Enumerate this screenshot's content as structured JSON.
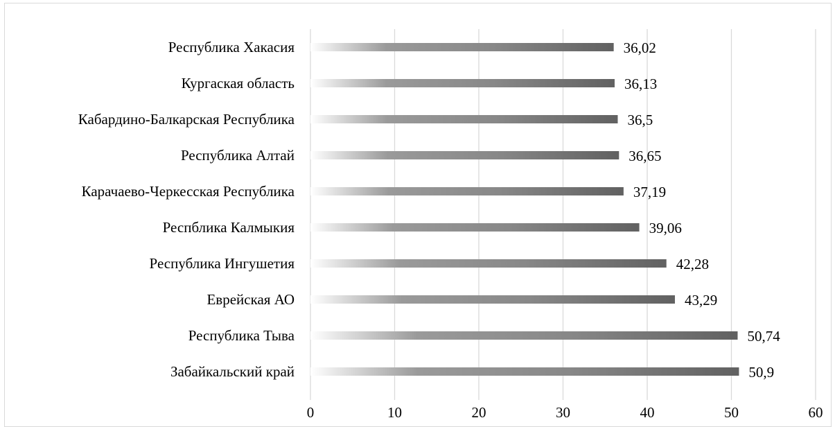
{
  "chart_data": {
    "type": "bar",
    "orientation": "horizontal",
    "categories": [
      "Республика Хакасия",
      "Кургаская область",
      "Кабардино-Балкарская Республика",
      "Республика Алтай",
      "Карачаево-Черкесская Республика",
      "Респблика Калмыкия",
      "Республика Ингушетия",
      "Еврейская АО",
      "Республика Тыва",
      "Забайкальский край"
    ],
    "values": [
      36.02,
      36.13,
      36.5,
      36.65,
      37.19,
      39.06,
      42.28,
      43.29,
      50.74,
      50.9
    ],
    "value_labels": [
      "36,02",
      "36,13",
      "36,5",
      "36,65",
      "37,19",
      "39,06",
      "42,28",
      "43,29",
      "50,74",
      "50,9"
    ],
    "x_ticks": [
      "0",
      "10",
      "20",
      "30",
      "40",
      "50",
      "60"
    ],
    "xlim": [
      0,
      60
    ],
    "grid": "vertical",
    "legend": "none",
    "title": "",
    "xlabel": "",
    "ylabel": "",
    "colors": {
      "bar_start": "#ffffff",
      "bar_mid": "#8c8c8c",
      "bar_end": "#606060",
      "grid": "#d9d9d9"
    }
  }
}
